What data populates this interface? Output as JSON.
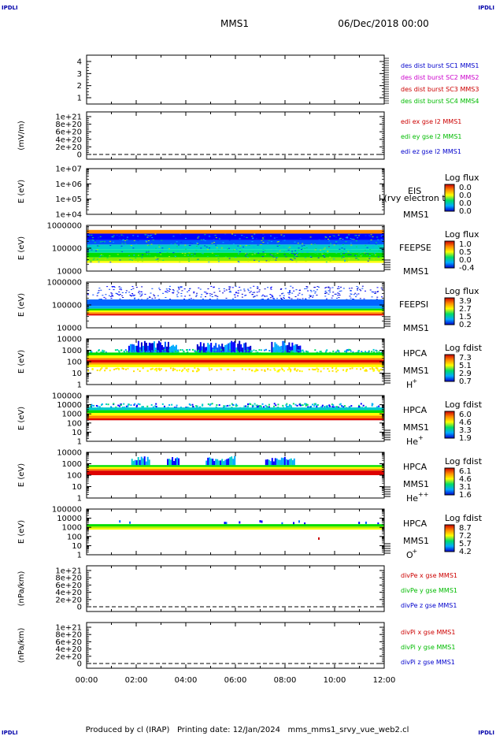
{
  "header": {
    "corner_tl": "IPDLI",
    "corner_tr": "IPDLI",
    "corner_bl": "IPDLI",
    "corner_br": "IPDLI",
    "title": "MMS1",
    "date": "06/Dec/2018 00:00"
  },
  "footer": {
    "text": "Produced by cl (IRAP)   Printing date: 12/Jan/2024   mms_mms1_srvy_vue_web2.cl"
  },
  "colors": {
    "blue": "#0000cc",
    "magenta": "#cc00cc",
    "red": "#cc0000",
    "green": "#00bb00",
    "spec_red": "#dd0000",
    "spec_orange": "#ff8800",
    "spec_yellow": "#ffff00",
    "spec_green": "#00dd00",
    "spec_cyan": "#00cccc",
    "spec_blue": "#0000ff"
  },
  "chart_data": [
    {
      "type": "line",
      "id": "p1",
      "ylim": [
        1,
        4
      ],
      "yticks": [
        "1",
        "2",
        "3",
        "4"
      ],
      "legend": [
        {
          "text": "des dist burst SC1 MMS1",
          "color": "blue"
        },
        {
          "text": "des dist burst SC2 MMS2",
          "color": "magenta"
        },
        {
          "text": "des dist burst SC3 MMS3",
          "color": "red"
        },
        {
          "text": "des dist burst SC4 MMS4",
          "color": "green"
        }
      ]
    },
    {
      "type": "line",
      "id": "p2",
      "ylabel": "(mV/m)",
      "yticks": [
        "0",
        "2e+20",
        "4e+20",
        "6e+20",
        "8e+20",
        "1e+21"
      ],
      "legend": [
        {
          "text": "edi ex gse l2 MMS1",
          "color": "red"
        },
        {
          "text": "edi ey gse l2 MMS1",
          "color": "green"
        },
        {
          "text": "edi ez gse l2 MMS1",
          "color": "blue"
        }
      ]
    },
    {
      "type": "heatmap",
      "id": "p3",
      "ylabel": "E (eV)",
      "scale": "log",
      "yticks": [
        "1e+04",
        "1e+05",
        "1e+06",
        "1e+07"
      ],
      "labels": [
        "EIS",
        "MMS1"
      ],
      "overlay": "l (rvy electron to",
      "colorbar": {
        "title": "Log flux",
        "ticks": [
          "0.0",
          "0.0",
          "0.0",
          "0.0"
        ]
      }
    },
    {
      "type": "heatmap",
      "id": "p4",
      "ylabel": "E (eV)",
      "scale": "log",
      "yticks": [
        "10000",
        "100000",
        "1000000"
      ],
      "labels": [
        "FEEPSE",
        "MMS1"
      ],
      "colorbar": {
        "title": "Log flux",
        "ticks": [
          "1.0",
          "0.5",
          "0.0",
          "-0.4"
        ]
      }
    },
    {
      "type": "heatmap",
      "id": "p5",
      "ylabel": "E (eV)",
      "scale": "log",
      "yticks": [
        "10000",
        "100000",
        "1000000"
      ],
      "labels": [
        "FEEPSI",
        "MMS1"
      ],
      "colorbar": {
        "title": "Log flux",
        "ticks": [
          "3.9",
          "2.7",
          "1.5",
          "0.2"
        ]
      }
    },
    {
      "type": "heatmap",
      "id": "p6",
      "ylabel": "E (eV)",
      "scale": "log",
      "yticks": [
        "1",
        "10",
        "100",
        "1000",
        "10000"
      ],
      "labels": [
        "HPCA",
        "MMS1"
      ],
      "species": "H",
      "charge": "+",
      "colorbar": {
        "title": "Log fdist",
        "ticks": [
          "7.3",
          "5.1",
          "2.9",
          "0.7"
        ]
      }
    },
    {
      "type": "heatmap",
      "id": "p7",
      "ylabel": "E (eV)",
      "scale": "log",
      "yticks": [
        "1",
        "10",
        "100",
        "1000",
        "10000",
        "100000"
      ],
      "labels": [
        "HPCA",
        "MMS1"
      ],
      "species": "He",
      "charge": "+",
      "colorbar": {
        "title": "Log fdist",
        "ticks": [
          "6.0",
          "4.6",
          "3.3",
          "1.9"
        ]
      }
    },
    {
      "type": "heatmap",
      "id": "p8",
      "ylabel": "E (eV)",
      "scale": "log",
      "yticks": [
        "1",
        "10",
        "100",
        "1000",
        "10000"
      ],
      "labels": [
        "HPCA",
        "MMS1"
      ],
      "species": "He",
      "charge": "++",
      "colorbar": {
        "title": "Log fdist",
        "ticks": [
          "6.1",
          "4.6",
          "3.1",
          "1.6"
        ]
      }
    },
    {
      "type": "heatmap",
      "id": "p9",
      "ylabel": "E (eV)",
      "scale": "log",
      "yticks": [
        "1",
        "10",
        "100",
        "1000",
        "10000",
        "100000"
      ],
      "labels": [
        "HPCA",
        "MMS1"
      ],
      "species": "O",
      "charge": "+",
      "colorbar": {
        "title": "Log fdist",
        "ticks": [
          "8.7",
          "7.2",
          "5.7",
          "4.2"
        ]
      }
    },
    {
      "type": "line",
      "id": "p10",
      "ylabel": "(nPa/km)",
      "yticks": [
        "0",
        "2e+20",
        "4e+20",
        "6e+20",
        "8e+20",
        "1e+21"
      ],
      "legend": [
        {
          "text": "divPe x gse MMS1",
          "color": "red"
        },
        {
          "text": "divPe y gse MMS1",
          "color": "green"
        },
        {
          "text": "divPe z gse MMS1",
          "color": "blue"
        }
      ]
    },
    {
      "type": "line",
      "id": "p11",
      "ylabel": "(nPa/km)",
      "yticks": [
        "0",
        "2e+20",
        "4e+20",
        "6e+20",
        "8e+20",
        "1e+21"
      ],
      "legend": [
        {
          "text": "divPi x gse MMS1",
          "color": "red"
        },
        {
          "text": "divPi y gse MMS1",
          "color": "green"
        },
        {
          "text": "divPi z gse MMS1",
          "color": "blue"
        }
      ]
    }
  ],
  "xaxis": {
    "ticks": [
      "00:00",
      "02:00",
      "04:00",
      "06:00",
      "08:00",
      "10:00",
      "12:00"
    ],
    "xlim": [
      "00:00",
      "12:00"
    ]
  }
}
